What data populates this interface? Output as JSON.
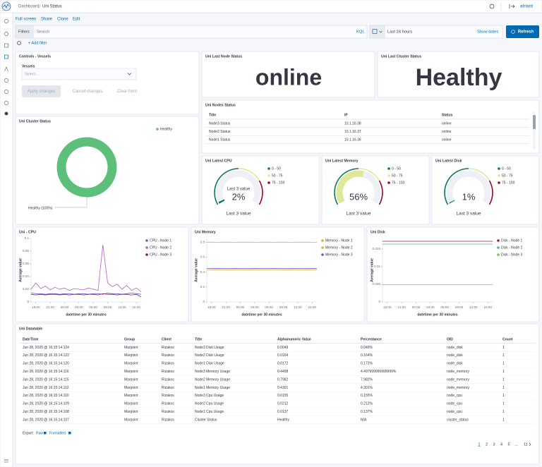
{
  "header": {
    "breadcrumbs": [
      "Dashboard",
      "Uni Status"
    ],
    "user": "atriant"
  },
  "toolbar": [
    "Full screen",
    "Share",
    "Clone",
    "Edit"
  ],
  "query": {
    "filters": "Filters",
    "search": "Search",
    "language": "KQL",
    "time": "Last 24 hours",
    "show_dates": "Show dates",
    "refresh": "Refresh",
    "add_filter": "+ Add filter"
  },
  "controls": {
    "title": "Controls - Vessels",
    "label": "Vessels",
    "placeholder": "Select...",
    "buttons": [
      "Apply changes",
      "Cancel changes",
      "Clear form"
    ]
  },
  "node_status": {
    "title": "Uni Last Node Status",
    "value": "online"
  },
  "cluster_status": {
    "title": "Uni Last Cluster Status",
    "value": "Healthy"
  },
  "nodes_table": {
    "title": "Uni Nodes Status",
    "columns": [
      "Title",
      "IP",
      "Status"
    ],
    "rows": [
      [
        "Node3 Status",
        "10.1.16.38",
        "online"
      ],
      [
        "Node2 Status",
        "10.1.16.37",
        "online"
      ],
      [
        "Node1 Status",
        "10.1.16.36",
        "online"
      ]
    ]
  },
  "chart_data": [
    {
      "type": "pie",
      "title": "Uni Cluster Status",
      "categories": [
        "Healthy"
      ],
      "values": [
        100
      ],
      "value_labels": [
        "Healthy (100%)"
      ],
      "colors": [
        "#5cc07a"
      ]
    },
    {
      "type": "gauge",
      "title": "Uni Latest CPU",
      "values": [
        2
      ],
      "value_labels": [
        "2%"
      ],
      "sublabel": "Last 3 value",
      "label": "Last 3 value",
      "ylim": [
        0,
        100
      ],
      "series": [
        {
          "name": "0 - 50",
          "color": "#0b7a50",
          "from": 0,
          "to": 50
        },
        {
          "name": "50 - 75",
          "color": "#dfe89a",
          "from": 50,
          "to": 75
        },
        {
          "name": "75 - 100",
          "color": "#a50026",
          "from": 75,
          "to": 100
        }
      ]
    },
    {
      "type": "gauge",
      "title": "Uni Latest Memory",
      "values": [
        56
      ],
      "value_labels": [
        "56%"
      ],
      "label": "Last 3 value",
      "ylim": [
        0,
        100
      ],
      "series": [
        {
          "name": "0 - 50",
          "color": "#0b7a50",
          "from": 0,
          "to": 50
        },
        {
          "name": "50 - 75",
          "color": "#dfe89a",
          "from": 50,
          "to": 75
        },
        {
          "name": "75 - 100",
          "color": "#a50026",
          "from": 75,
          "to": 100
        }
      ]
    },
    {
      "type": "gauge",
      "title": "Uni Latest Disk",
      "values": [
        1
      ],
      "value_labels": [
        "1%"
      ],
      "label": "Last 3 value",
      "ylim": [
        0,
        100
      ],
      "series": [
        {
          "name": "0 - 50",
          "color": "#0b7a50",
          "from": 0,
          "to": 50
        },
        {
          "name": "50 - 75",
          "color": "#dfe89a",
          "from": 50,
          "to": 75
        },
        {
          "name": "75 - 100",
          "color": "#a50026",
          "from": 75,
          "to": 100
        }
      ]
    },
    {
      "type": "line",
      "title": "Uni - CPU",
      "xlabel": "datetime per 30 minutes",
      "ylabel": "Average value",
      "categories": [
        null,
        "18:00",
        null,
        null,
        "21:00",
        null,
        null,
        "00:00",
        null,
        null,
        "03:00",
        null,
        null,
        "06:00",
        null,
        null,
        "09:00",
        null,
        null,
        "12:00",
        null,
        null,
        "15:00",
        null
      ],
      "ylim": [
        0,
        0.1
      ],
      "yticks": [
        0,
        0.02,
        0.04,
        0.06,
        0.08,
        0.1
      ],
      "series": [
        {
          "name": "CPU - Node 1",
          "color": "#6a5acd",
          "values": [
            0.014,
            0.013,
            0.013,
            0.012,
            0.013,
            0.013,
            0.012,
            0.013,
            0.013,
            0.012,
            0.013,
            0.013,
            0.012,
            0.013,
            0.013,
            0.012,
            0.014,
            0.013,
            0.013,
            0.012,
            0.013,
            0.014,
            0.013,
            0.012
          ]
        },
        {
          "name": "CPU - Node 2",
          "color": "#b05fc4",
          "values": [
            0.02,
            0.03,
            0.021,
            0.025,
            0.019,
            0.023,
            0.02,
            0.022,
            0.018,
            0.021,
            0.02,
            0.019,
            0.022,
            0.02,
            0.018,
            0.09,
            0.03,
            0.024,
            0.028,
            0.02,
            0.026,
            0.018,
            0.022,
            0.016
          ]
        },
        {
          "name": "CPU - Node 3",
          "color": "#8b1a3a",
          "values": [
            0.012,
            0.011,
            0.012,
            0.011,
            0.012,
            0.012,
            0.011,
            0.012,
            0.011,
            0.012,
            0.012,
            0.011,
            0.012,
            0.012,
            0.011,
            0.013,
            0.012,
            0.012,
            0.011,
            0.012,
            0.012,
            0.011,
            0.012,
            0.008
          ]
        }
      ]
    },
    {
      "type": "line",
      "title": "Uni Memory",
      "xlabel": "datetime per 30 minutes",
      "ylabel": "Average value",
      "categories": [
        null,
        "18:00",
        null,
        null,
        "21:00",
        null,
        null,
        "00:00",
        null,
        null,
        "03:00",
        null,
        null,
        "06:00",
        null,
        null,
        "09:00",
        null,
        null,
        "12:00",
        null,
        null,
        "15:00",
        null
      ],
      "ylim": [
        0,
        0.85
      ],
      "yticks": [
        0,
        0.2,
        0.4,
        0.6,
        0.8
      ],
      "series": [
        {
          "name": "Memory - Node 1",
          "color": "#e7a33e",
          "values": [
            0.43,
            0.43,
            0.431,
            0.43,
            0.43,
            0.431,
            0.43,
            0.43,
            0.43,
            0.431,
            0.43,
            0.43,
            0.43,
            0.431,
            0.43,
            0.43,
            0.43,
            0.431,
            0.43,
            0.43,
            0.43,
            0.431,
            0.43,
            0.43
          ]
        },
        {
          "name": "Memory - Node 2",
          "color": "#c9b93a",
          "values": [
            0.8,
            0.8,
            0.799,
            0.8,
            0.8,
            0.8,
            0.799,
            0.8,
            0.8,
            0.8,
            0.799,
            0.8,
            0.8,
            0.8,
            0.799,
            0.8,
            0.8,
            0.8,
            0.799,
            0.8,
            0.8,
            0.8,
            0.799,
            0.8
          ]
        },
        {
          "name": "Memory - Node 3",
          "color": "#5b5bd6",
          "values": [
            0.45,
            0.45,
            0.449,
            0.45,
            0.45,
            0.45,
            0.449,
            0.45,
            0.45,
            0.45,
            0.449,
            0.45,
            0.45,
            0.45,
            0.449,
            0.45,
            0.45,
            0.45,
            0.449,
            0.45,
            0.45,
            0.45,
            0.449,
            0.45
          ]
        }
      ]
    },
    {
      "type": "line",
      "title": "Uni Disk",
      "xlabel": "datetime per 30 minutes",
      "ylabel": "Average value",
      "categories": [
        null,
        "18:00",
        null,
        null,
        "21:00",
        null,
        null,
        "00:00",
        null,
        null,
        "03:00",
        null,
        null,
        "06:00",
        null,
        null,
        "09:00",
        null,
        null,
        "12:00",
        null,
        null,
        "15:00",
        null
      ],
      "ylim": [
        0,
        0.018
      ],
      "yticks": [
        0,
        0.005,
        0.01,
        0.015
      ],
      "series": [
        {
          "name": "Disk - Node 1",
          "color": "#a0203e",
          "values": [
            0.0172,
            0.0172,
            0.0172,
            0.0172,
            0.0172,
            0.0172,
            0.0172,
            0.0172,
            0.0172,
            0.0172,
            0.0172,
            0.0172,
            0.0172,
            0.0172,
            0.0172,
            0.0172,
            0.0172,
            0.0172,
            0.0172,
            0.0172,
            0.0172,
            0.0172,
            0.0172,
            0.0172
          ]
        },
        {
          "name": "Disk - Node 2",
          "color": "#54b399",
          "values": [
            0.0164,
            0.0164,
            0.0164,
            0.0164,
            0.0164,
            0.0164,
            0.0164,
            0.0164,
            0.0164,
            0.0164,
            0.0164,
            0.0164,
            0.0164,
            0.0164,
            0.0164,
            0.0164,
            0.0164,
            0.0164,
            0.0164,
            0.0164,
            0.0164,
            0.0164,
            0.0164,
            0.0164
          ]
        },
        {
          "name": "Disk - Node 3",
          "color": "#6dcc4e",
          "values": [
            0.0049,
            0.0049,
            0.0049,
            0.0049,
            0.0049,
            0.0049,
            0.0049,
            0.0049,
            0.0049,
            0.0049,
            0.0049,
            0.0049,
            0.0049,
            0.0049,
            0.0049,
            0.0049,
            0.0049,
            0.0049,
            0.0049,
            0.0049,
            0.0049,
            0.0049,
            0.0049,
            0.0049
          ]
        }
      ]
    }
  ],
  "datatable": {
    "title": "Uni Datatable",
    "columns": [
      "DateTime",
      "Group",
      "Client",
      "Title",
      "Alphanumeric Value",
      "Percentance",
      "OID",
      "Count"
    ],
    "rows": [
      [
        "Jun 28, 2020 @ 16:15:14.124",
        "Marpoint",
        "Rizakos",
        "Node3 Disk Usage",
        "0.0049",
        "0.049%",
        "node_disk",
        "1"
      ],
      [
        "Jun 28, 2020 @ 16:15:14.122",
        "Marpoint",
        "Rizakos",
        "Node2 Disk Usage",
        "0.0164",
        "0.164%",
        "node_disk",
        "1"
      ],
      [
        "Jun 28, 2020 @ 16:15:14.120",
        "Marpoint",
        "Rizakos",
        "Node1 Disk Usage",
        "0.0172",
        "0.172%",
        "node_disk",
        "1"
      ],
      [
        "Jun 28, 2020 @ 16:15:14.116",
        "Marpoint",
        "Rizakos",
        "Node3 Memory Usage",
        "0.4498",
        "4.497999999999999%",
        "node_memory",
        "1"
      ],
      [
        "Jun 28, 2020 @ 16:15:14.115",
        "Marpoint",
        "Rizakos",
        "Node2 Memory Usage",
        "0.7982",
        "7.982%",
        "node_memory",
        "1"
      ],
      [
        "Jun 28, 2020 @ 16:15:14.112",
        "Marpoint",
        "Rizakos",
        "Node1 Memory Usage",
        "0.4301",
        "4.301%",
        "node_memory",
        "1"
      ],
      [
        "Jun 28, 2020 @ 16:15:14.110",
        "Marpoint",
        "Rizakos",
        "Node3 Cpu Usage",
        "0.0155",
        "0.155%",
        "node_cpu",
        "1"
      ],
      [
        "Jun 28, 2020 @ 16:15:14.109",
        "Marpoint",
        "Rizakos",
        "Node2 Cpu Usage",
        "0.0212",
        "0.212%",
        "node_cpu",
        "1"
      ],
      [
        "Jun 28, 2020 @ 16:15:14.108",
        "Marpoint",
        "Rizakos",
        "Node1 Cpu Usage",
        "0.0137",
        "0.137%",
        "node_cpu",
        "1"
      ],
      [
        "Jun 28, 2020 @ 16:15:14.107",
        "Marpoint",
        "Rizakos",
        "Cluster Status",
        "Healthy",
        "N/A",
        "cluster_status",
        "1"
      ]
    ],
    "export": "Export:",
    "export_links": [
      "Raw",
      "Formatted"
    ],
    "pages": [
      "1",
      "2",
      "3",
      "4",
      "5",
      "...",
      "11"
    ]
  }
}
